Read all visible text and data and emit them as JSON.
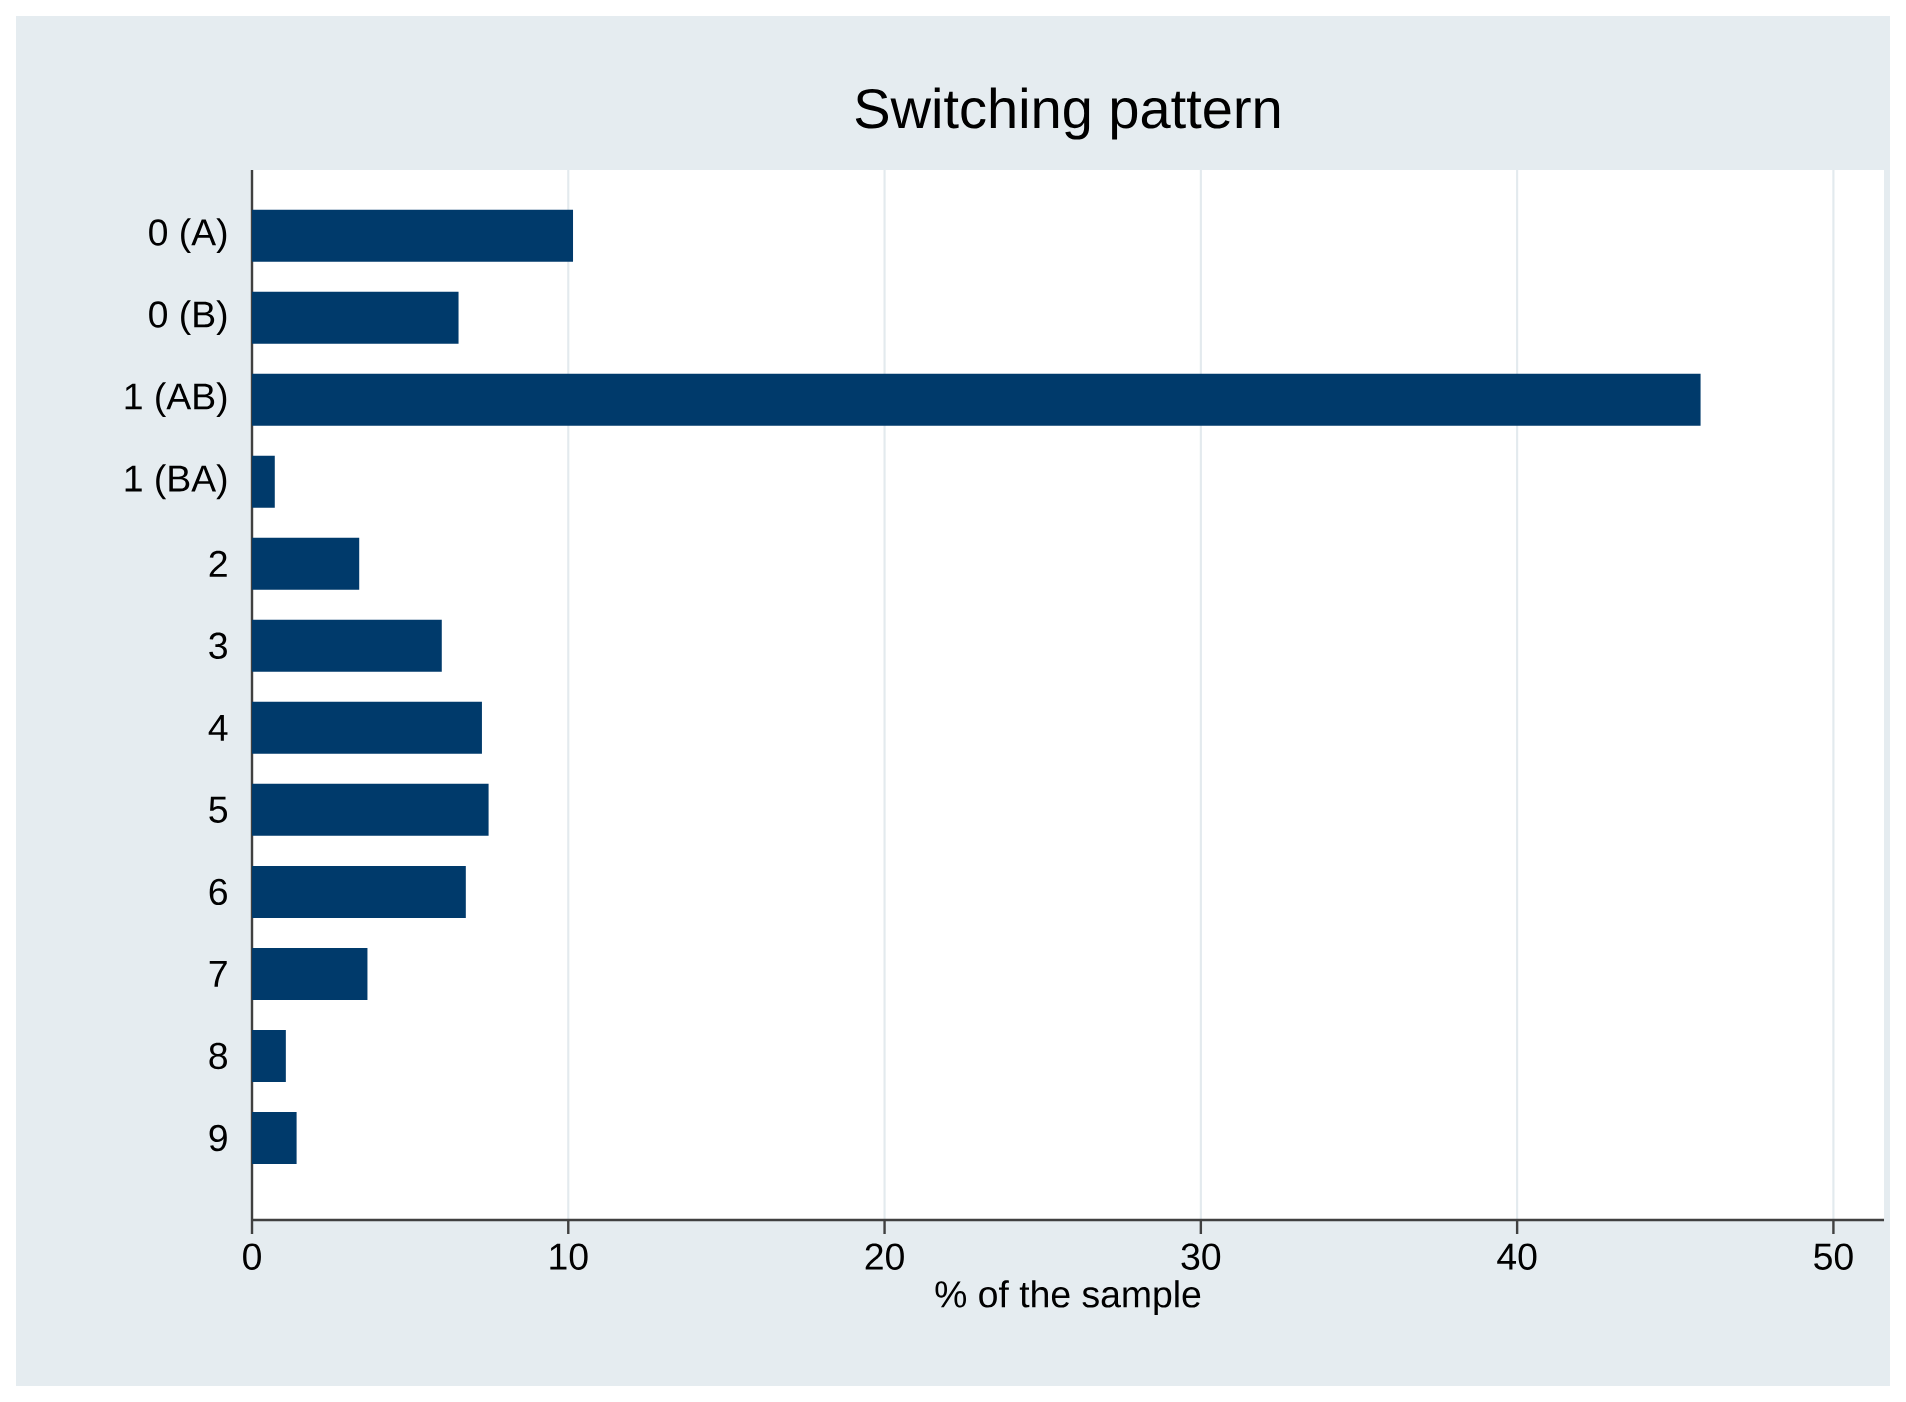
{
  "chart_data": {
    "type": "bar",
    "orientation": "horizontal",
    "title": "Switching pattern",
    "xlabel": "% of the sample",
    "categories": [
      "0 (A)",
      "0 (B)",
      "1 (AB)",
      "1 (BA)",
      "2",
      "3",
      "4",
      "5",
      "6",
      "7",
      "8",
      "9"
    ],
    "values": [
      10.15,
      6.53,
      45.8,
      0.72,
      3.39,
      6.0,
      7.27,
      7.48,
      6.76,
      3.65,
      1.07,
      1.41
    ],
    "color": "#003a6b",
    "xlim": [
      0,
      51.6
    ],
    "xticks": [
      0,
      10,
      20,
      30,
      40,
      50
    ],
    "grid": "x"
  }
}
